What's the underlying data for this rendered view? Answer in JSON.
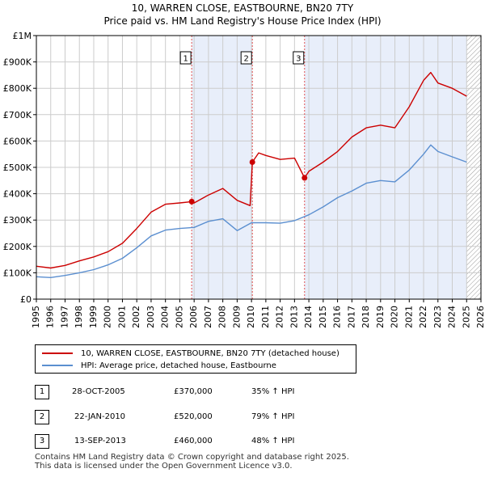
{
  "title_line1": "10, WARREN CLOSE, EASTBOURNE, BN20 7TY",
  "title_line2": "Price paid vs. HM Land Registry's House Price Index (HPI)",
  "chart_data": {
    "type": "line",
    "title": "10, WARREN CLOSE, EASTBOURNE, BN20 7TY — Price paid vs. HM Land Registry's House Price Index (HPI)",
    "xlabel": "",
    "ylabel": "",
    "xlim": [
      1995,
      2026
    ],
    "ylim": [
      0,
      1000000
    ],
    "x_ticks": [
      1995,
      1996,
      1997,
      1998,
      1999,
      2000,
      2001,
      2002,
      2003,
      2004,
      2005,
      2006,
      2007,
      2008,
      2009,
      2010,
      2011,
      2012,
      2013,
      2014,
      2015,
      2016,
      2017,
      2018,
      2019,
      2020,
      2021,
      2022,
      2023,
      2024,
      2025,
      2026
    ],
    "y_ticks": [
      0,
      100000,
      200000,
      300000,
      400000,
      500000,
      600000,
      700000,
      800000,
      900000,
      1000000
    ],
    "y_tick_labels": [
      "£0",
      "£100K",
      "£200K",
      "£300K",
      "£400K",
      "£500K",
      "£600K",
      "£700K",
      "£800K",
      "£900K",
      "£1M"
    ],
    "grid": true,
    "colors": {
      "property": "#cc0000",
      "hpi": "#5b8fd0",
      "band": "#e8eefa",
      "grid": "#cccccc",
      "marker_line": "#e05050"
    },
    "series": [
      {
        "name": "10, WARREN CLOSE, EASTBOURNE, BN20 7TY (detached house)",
        "x": [
          1995,
          1996,
          1997,
          1998,
          1999,
          2000,
          2001,
          2002,
          2003,
          2004,
          2005,
          2005.83,
          2006,
          2007,
          2008,
          2009,
          2009.9,
          2010.06,
          2010.5,
          2011,
          2012,
          2013,
          2013.7,
          2014,
          2015,
          2016,
          2017,
          2018,
          2019,
          2020,
          2021,
          2022,
          2022.5,
          2023,
          2024,
          2025
        ],
        "values": [
          125000,
          118000,
          128000,
          145000,
          160000,
          180000,
          212000,
          268000,
          330000,
          360000,
          365000,
          370000,
          365000,
          395000,
          420000,
          375000,
          355000,
          520000,
          555000,
          545000,
          530000,
          535000,
          460000,
          485000,
          520000,
          560000,
          615000,
          650000,
          660000,
          650000,
          730000,
          830000,
          860000,
          820000,
          800000,
          770000
        ]
      },
      {
        "name": "HPI: Average price, detached house, Eastbourne",
        "x": [
          1995,
          1996,
          1997,
          1998,
          1999,
          2000,
          2001,
          2002,
          2003,
          2004,
          2005,
          2006,
          2007,
          2008,
          2009,
          2010,
          2011,
          2012,
          2013,
          2014,
          2015,
          2016,
          2017,
          2018,
          2019,
          2020,
          2021,
          2022,
          2022.5,
          2023,
          2024,
          2025
        ],
        "values": [
          85000,
          82000,
          90000,
          100000,
          112000,
          130000,
          155000,
          195000,
          240000,
          262000,
          268000,
          272000,
          295000,
          305000,
          260000,
          290000,
          290000,
          288000,
          298000,
          320000,
          350000,
          385000,
          410000,
          440000,
          450000,
          445000,
          490000,
          550000,
          585000,
          560000,
          540000,
          520000
        ]
      }
    ],
    "annotations": [
      {
        "label": "1",
        "x": 2005.83,
        "y": 370000
      },
      {
        "label": "2",
        "x": 2010.06,
        "y": 520000
      },
      {
        "label": "3",
        "x": 2013.7,
        "y": 460000
      }
    ],
    "shaded_x_ranges": [
      [
        2005.83,
        2010.06
      ],
      [
        2013.7,
        2025.0
      ]
    ],
    "hatched_x_range": [
      2025.0,
      2026
    ]
  },
  "legend": {
    "property_label": "10, WARREN CLOSE, EASTBOURNE, BN20 7TY (detached house)",
    "hpi_label": "HPI: Average price, detached house, Eastbourne"
  },
  "transactions": [
    {
      "num": "1",
      "date": "28-OCT-2005",
      "price": "£370,000",
      "hpi": "35% ↑ HPI"
    },
    {
      "num": "2",
      "date": "22-JAN-2010",
      "price": "£520,000",
      "hpi": "79% ↑ HPI"
    },
    {
      "num": "3",
      "date": "13-SEP-2013",
      "price": "£460,000",
      "hpi": "48% ↑ HPI"
    }
  ],
  "footer_line1": "Contains HM Land Registry data © Crown copyright and database right 2025.",
  "footer_line2": "This data is licensed under the Open Government Licence v3.0."
}
